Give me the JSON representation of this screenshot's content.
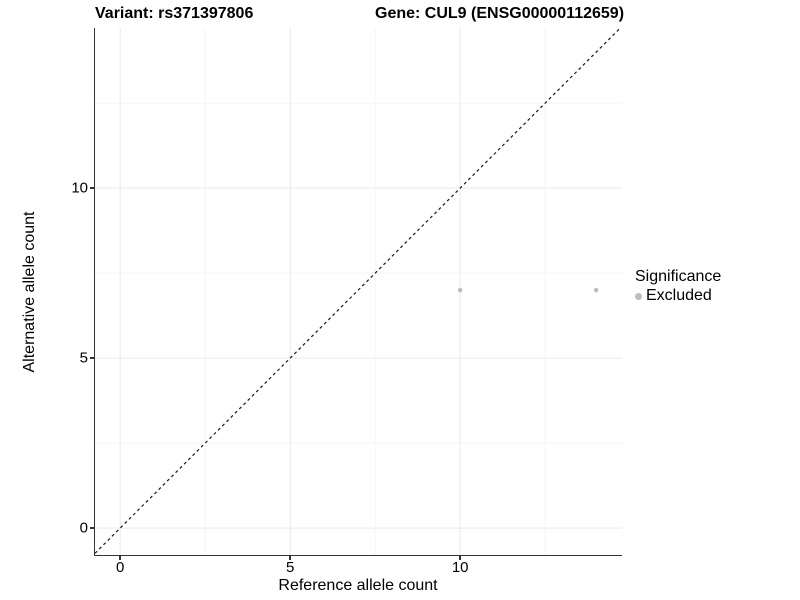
{
  "titles": {
    "left": "Variant: rs371397806",
    "right": "Gene: CUL9 (ENSG00000112659)"
  },
  "legend": {
    "title": "Significance",
    "items": [
      {
        "label": "Excluded",
        "color": "#bdbdbd"
      }
    ]
  },
  "chart_data": {
    "type": "scatter",
    "title": "Variant: rs371397806   Gene: CUL9 (ENSG00000112659)",
    "xlabel": "Reference allele count",
    "ylabel": "Alternative allele count",
    "xlim": [
      -0.74,
      14.76
    ],
    "ylim": [
      -0.79,
      14.71
    ],
    "x_ticks": [
      0,
      5,
      10
    ],
    "y_ticks": [
      0,
      5,
      10
    ],
    "x_minor": [
      2.5,
      7.5,
      12.5
    ],
    "y_minor": [
      2.5,
      7.5,
      12.5
    ],
    "grid": true,
    "legend_position": "right",
    "series": [
      {
        "name": "Excluded",
        "points": [
          {
            "x": 10,
            "y": 7
          },
          {
            "x": 14,
            "y": 7
          }
        ],
        "color": "#bdbdbd",
        "point_radius": 2.3
      }
    ],
    "reference_line": {
      "type": "identity",
      "style": "dashed",
      "color": "#1a1a1a"
    },
    "colors": {
      "grid_major": "#e9e9e9",
      "grid_minor": "#f4f4f4",
      "axis_line": "#333333",
      "background": "#ffffff"
    }
  }
}
